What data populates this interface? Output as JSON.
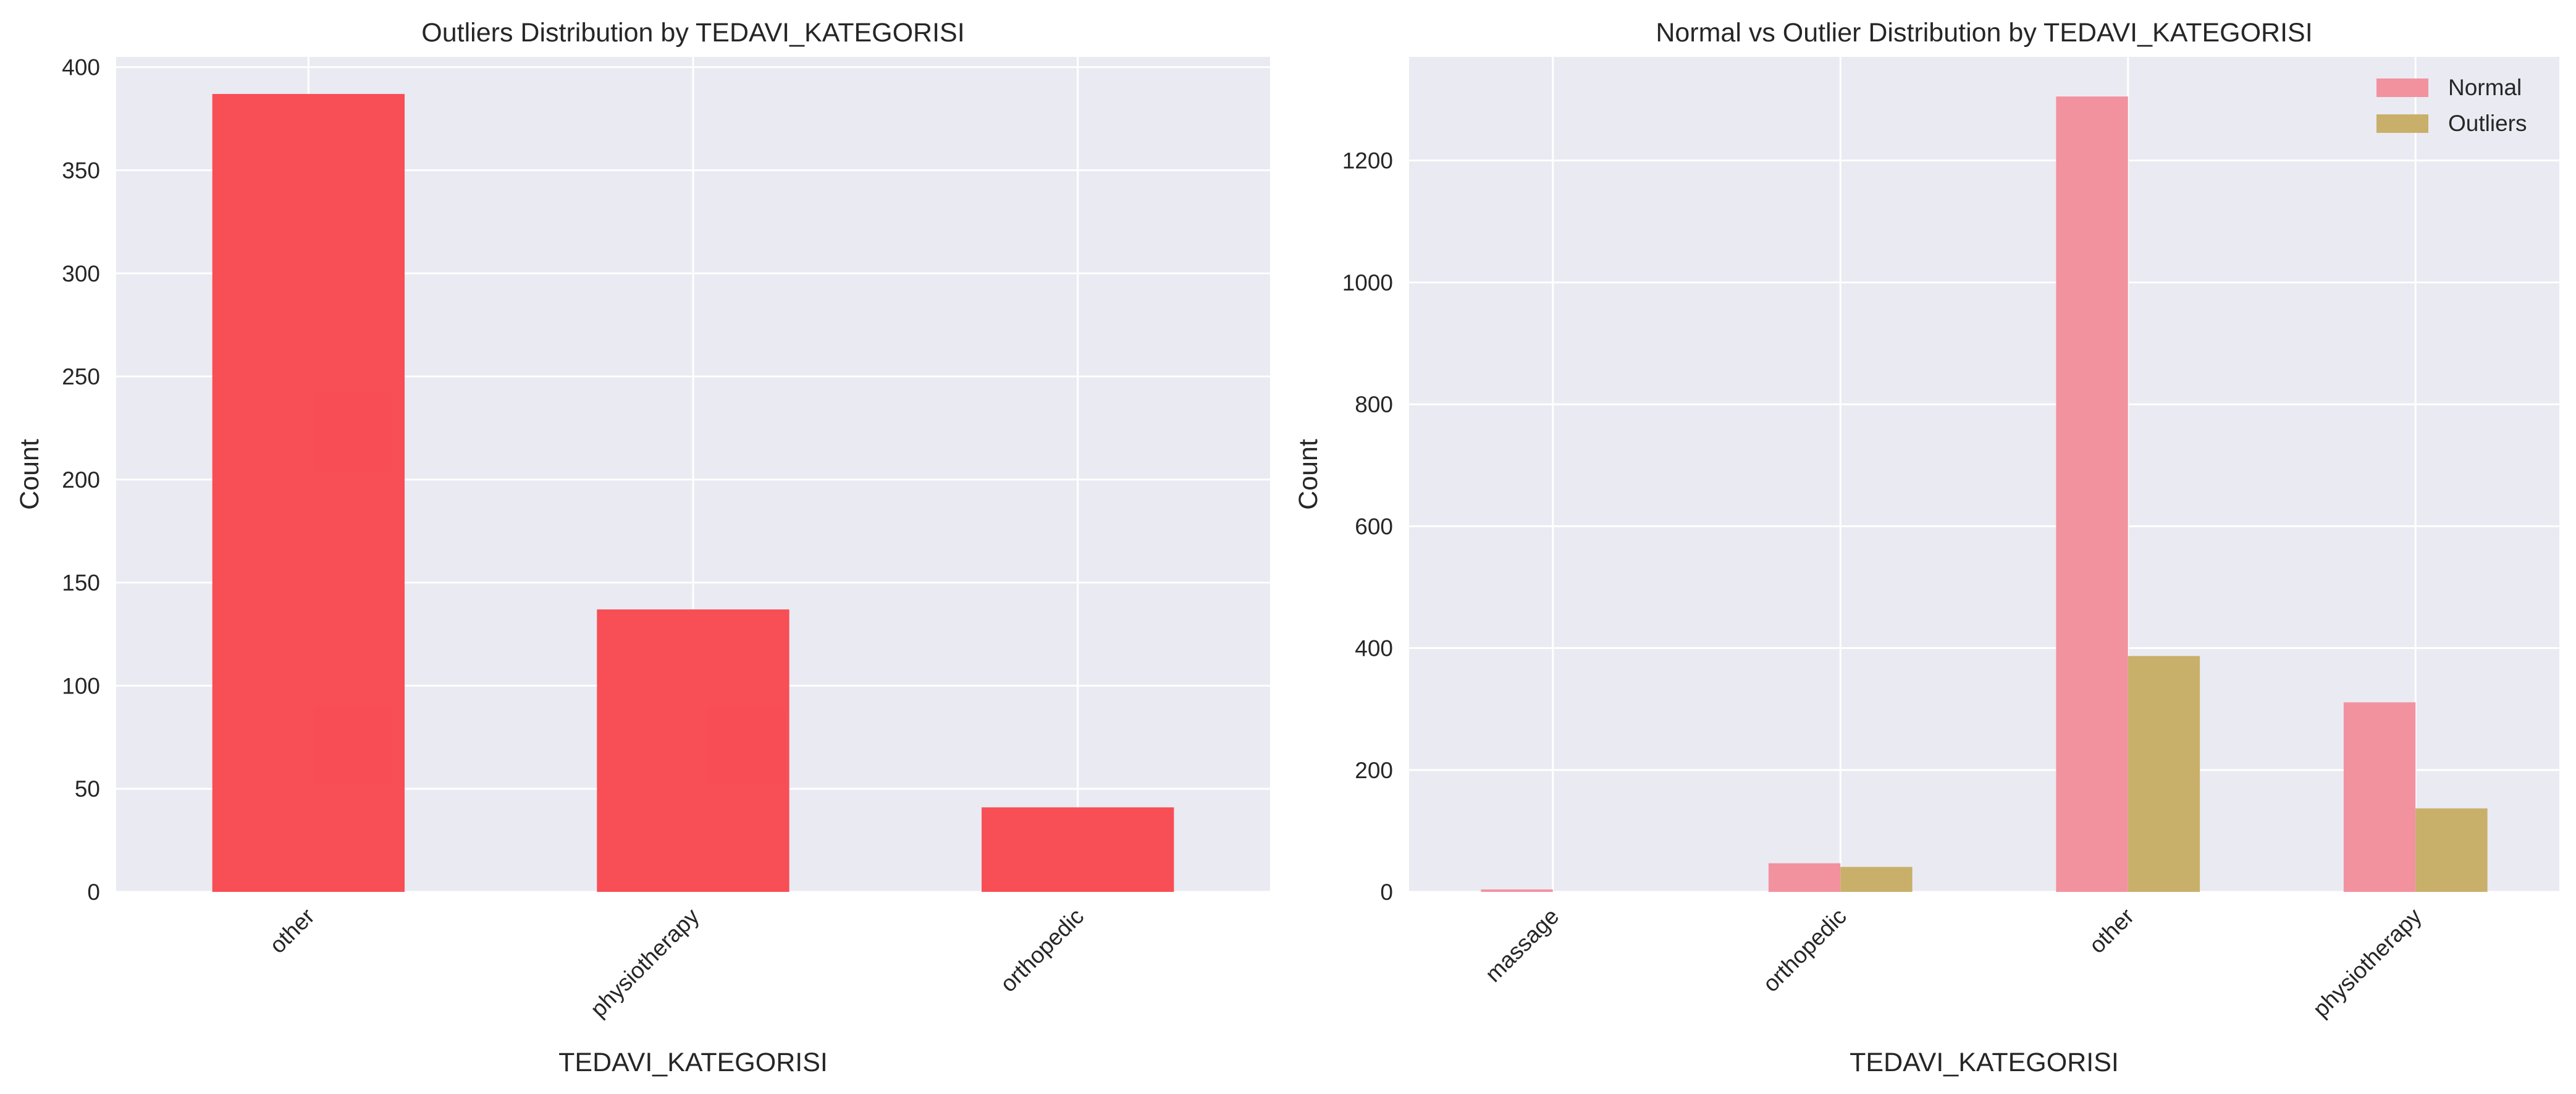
{
  "colors": {
    "plot_background": "#EAEAF2",
    "grid": "#FFFFFF",
    "outliers_bar": "#F8484F",
    "normal_bar": "#F2929F",
    "outliers_series": "#C9B06A",
    "text": "#262626"
  },
  "chart_data": [
    {
      "type": "bar",
      "title": "Outliers Distribution by TEDAVI_KATEGORISI",
      "xlabel": "TEDAVI_KATEGORISI",
      "ylabel": "Count",
      "categories": [
        "other",
        "physiotherapy",
        "orthopedic"
      ],
      "values": [
        387,
        137,
        41
      ],
      "ylim": [
        0,
        405
      ],
      "yticks": [
        "0",
        "50",
        "100",
        "150",
        "200",
        "250",
        "300",
        "350",
        "400"
      ],
      "ytick_values": [
        0,
        50,
        100,
        150,
        200,
        250,
        300,
        350,
        400
      ],
      "xtick_rotation": -45,
      "grid": true,
      "legend": null
    },
    {
      "type": "bar",
      "title": "Normal vs Outlier Distribution by TEDAVI_KATEGORISI",
      "xlabel": "TEDAVI_KATEGORISI",
      "ylabel": "Count",
      "categories": [
        "massage",
        "orthopedic",
        "other",
        "physiotherapy"
      ],
      "series": [
        {
          "name": "Normal",
          "values": [
            4,
            47,
            1305,
            311
          ]
        },
        {
          "name": "Outliers",
          "values": [
            0,
            41,
            387,
            137
          ]
        }
      ],
      "ylim": [
        0,
        1370
      ],
      "yticks": [
        "0",
        "200",
        "400",
        "600",
        "800",
        "1000",
        "1200"
      ],
      "ytick_values": [
        0,
        200,
        400,
        600,
        800,
        1000,
        1200
      ],
      "xtick_rotation": -45,
      "grid": true,
      "legend": "top-right"
    }
  ]
}
